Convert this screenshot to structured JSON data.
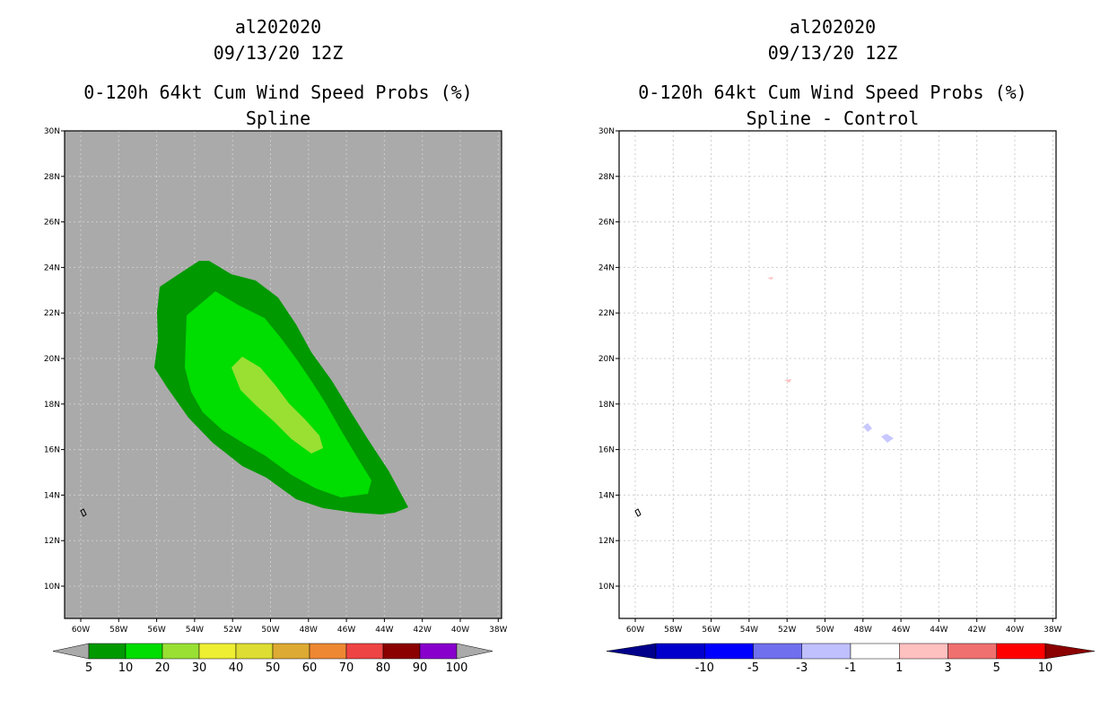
{
  "panels": [
    {
      "storm_id": "al202020",
      "datetime": "09/13/20 12Z",
      "product": "0-120h 64kt Cum Wind Speed Probs (%)",
      "subtitle": "Spline",
      "colorbar": {
        "labels": [
          "5",
          "10",
          "20",
          "30",
          "40",
          "50",
          "60",
          "70",
          "80",
          "90",
          "100"
        ],
        "colors": [
          "#009900",
          "#00dd00",
          "#99e033",
          "#eeee33",
          "#dddd33",
          "#ddaa33",
          "#ee8833",
          "#ee4444",
          "#8b0000",
          "#8800cc"
        ],
        "ends": [
          "#aaaaaa",
          "#aaaaaa"
        ]
      }
    },
    {
      "storm_id": "al202020",
      "datetime": "09/13/20 12Z",
      "product": "0-120h 64kt Cum Wind Speed Probs (%)",
      "subtitle": "Spline - Control",
      "colorbar": {
        "labels": [
          "-10",
          "-5",
          "-3",
          "-1",
          "1",
          "3",
          "5",
          "10"
        ],
        "colors": [
          "#0000cc",
          "#0000ff",
          "#7070ee",
          "#c0c0ff",
          "#ffffff",
          "#ffc0c0",
          "#f07070",
          "#ff0000"
        ],
        "ends": [
          "#00008b",
          "#8b0000"
        ]
      }
    }
  ],
  "axes": {
    "lon_labels": [
      "60W",
      "58W",
      "56W",
      "54W",
      "52W",
      "50W",
      "48W",
      "46W",
      "44W",
      "42W",
      "40W",
      "38W"
    ],
    "lat_labels": [
      "30N",
      "28N",
      "26N",
      "24N",
      "22N",
      "20N",
      "18N",
      "16N",
      "14N",
      "12N",
      "10N"
    ]
  },
  "colors": {
    "background_missing": "#aaaaaa",
    "grid": "#cccccc"
  }
}
